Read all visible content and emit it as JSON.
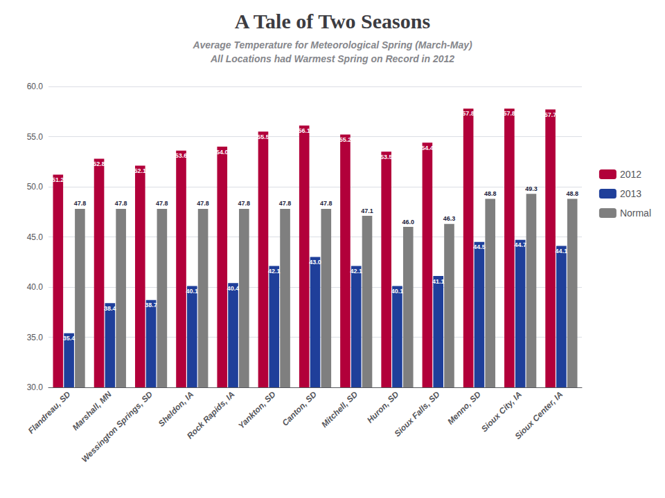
{
  "chart_data": {
    "type": "bar",
    "title": "A Tale of Two Seasons",
    "subtitle": [
      "Average Temperature for Meteorological Spring (March-May)",
      "All Locations had Warmest Spring on Record in 2012"
    ],
    "categories": [
      "Flandreau, SD",
      "Marshall, MN",
      "Wessington Springs, SD",
      "Sheldon, IA",
      "Rock Rapids, IA",
      "Yankton, SD",
      "Canton, SD",
      "Mitchell, SD",
      "Huron, SD",
      "Sioux Falls, SD",
      "Menno, SD",
      "Sioux City, IA",
      "Sioux Center, IA"
    ],
    "series": [
      {
        "name": "2012",
        "color": "#B2003A",
        "values": [
          51.2,
          52.8,
          52.1,
          53.6,
          54.0,
          55.5,
          56.1,
          55.2,
          53.5,
          54.4,
          57.8,
          57.8,
          57.7
        ],
        "value_labels": [
          "51.2",
          "52.8",
          "52.1",
          "53.6",
          "54.0",
          "55.5",
          "56.1",
          "55.2",
          "53.5",
          "54.4",
          "57.8",
          "57.8",
          "57.7"
        ]
      },
      {
        "name": "2013",
        "color": "#1F3F9A",
        "values": [
          35.4,
          38.4,
          38.7,
          40.1,
          40.4,
          42.1,
          43.0,
          42.1,
          40.1,
          41.1,
          44.5,
          44.7,
          44.1
        ],
        "value_labels": [
          "35.4",
          "38.4",
          "38.7",
          "40.1",
          "40.4",
          "42.1",
          "43.0",
          "42.1",
          "40.1",
          "41.1",
          "44.5",
          "44.7",
          "44.1"
        ]
      },
      {
        "name": "Normal",
        "color": "#7F7F7F",
        "values": [
          47.8,
          47.8,
          47.8,
          47.8,
          47.8,
          47.8,
          47.8,
          47.1,
          46.0,
          46.3,
          48.8,
          49.3,
          48.8
        ],
        "value_labels": [
          "47.8",
          "47.8",
          "47.8",
          "47.8",
          "47.8",
          "47.8",
          "47.8",
          "47.1",
          "46.0",
          "46.3",
          "48.8",
          "49.3",
          "48.8"
        ]
      }
    ],
    "ylim": [
      30.0,
      60.0
    ],
    "yticks": [
      {
        "value": 30.0,
        "label": "30.0"
      },
      {
        "value": 35.0,
        "label": "35.0"
      },
      {
        "value": 40.0,
        "label": "40.0"
      },
      {
        "value": 45.0,
        "label": "45.0"
      },
      {
        "value": 50.0,
        "label": "50.0"
      },
      {
        "value": 55.0,
        "label": "55.0"
      },
      {
        "value": 60.0,
        "label": "60.0"
      }
    ],
    "grid": true,
    "legend": "right",
    "data_labels": true
  }
}
